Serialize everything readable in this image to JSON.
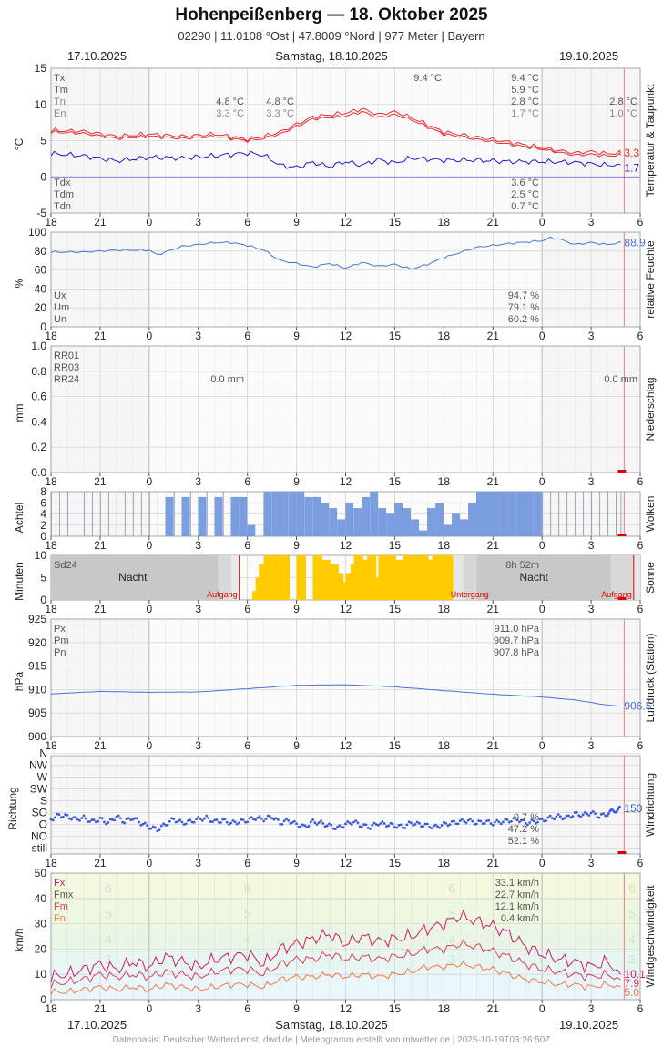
{
  "header": {
    "title": "Hohenpeißenberg  —  18. Oktober 2025",
    "subtitle": "02290  |  11.0108 °Ost  |  47.8009 °Nord  |  977 Meter  |  Bayern",
    "date_left": "17.10.2025",
    "date_center": "Samstag, 18.10.2025",
    "date_right": "19.10.2025"
  },
  "footer": "Datenbasis: Deutscher Wetterdienst, dwd.de | Meteogramm erstellt von mtwetter.de | 2025-10-19T03:26:50Z",
  "x_axis": {
    "tick_labels": [
      "18",
      "21",
      "0",
      "3",
      "6",
      "9",
      "12",
      "15",
      "18",
      "21",
      "0",
      "3",
      "6"
    ],
    "unit": "hours"
  },
  "colors": {
    "temperature": "#e8282b",
    "dewpoint": "#1a1acc",
    "humidity": "#4a72d8",
    "pressure": "#4a72d8",
    "clouds": "#7a9ee0",
    "sun": "#ffcc00",
    "gust": "#cc1a6a",
    "wind_max": "#d8405a",
    "wind_mean": "#f07a40",
    "night": "#c8c8c8"
  },
  "chart_data": [
    {
      "id": "temp",
      "type": "line",
      "ylabel": "°C",
      "side_label": "Temperatur & Taupunkt",
      "ylim": [
        -5,
        15
      ],
      "yticks": [
        "-5",
        "0",
        "5",
        "10",
        "15"
      ],
      "legend_top": [
        "Tx",
        "Tm",
        "Tn",
        "En"
      ],
      "legend_bottom": [
        "Tdx",
        "Tdm",
        "Tdn"
      ],
      "stats_day1": {
        "Tx": "9.4 °C",
        "Tm": "5.9 °C",
        "Tn": "2.8 °C",
        "En": "1.7 °C"
      },
      "stats_dew": {
        "Tdx": "3.6 °C",
        "Tdm": "2.5 °C",
        "Tdn": "0.7 °C"
      },
      "stats_prev_Tn": "4.8 °C",
      "stats_prev_En": "3.3 °C",
      "stats_prev2_Tn": "4.8 °C",
      "stats_prev2_En": "3.3 °C",
      "stats_tx_peak": "9.4 °C",
      "stats_next_Tn": "2.8 °C",
      "stats_next_En": "1.0 °C",
      "last_temp": "3.3",
      "last_dew": "1.7",
      "series": [
        {
          "name": "Tx",
          "x": [
            18,
            20,
            22,
            24,
            26,
            28,
            30,
            31,
            32,
            34,
            36,
            37,
            38,
            39,
            40,
            42,
            44,
            46,
            48,
            50,
            51,
            52,
            52.8
          ],
          "y": [
            6.4,
            6.3,
            5.6,
            5.9,
            5.6,
            5.9,
            5.2,
            5.6,
            6.2,
            8.3,
            8.8,
            9.4,
            8.6,
            9.0,
            8.2,
            6.2,
            5.5,
            4.8,
            4.0,
            3.3,
            3.5,
            3.2,
            3.3
          ]
        },
        {
          "name": "Tm",
          "x": [
            18,
            20,
            22,
            24,
            26,
            28,
            30,
            31,
            32,
            34,
            36,
            37,
            38,
            39,
            40,
            42,
            44,
            46,
            48,
            50,
            51,
            52,
            52.8
          ],
          "y": [
            6.2,
            6.0,
            5.3,
            5.6,
            5.3,
            5.6,
            5.0,
            5.3,
            5.9,
            8.0,
            8.4,
            9.0,
            8.2,
            8.6,
            7.9,
            5.9,
            5.2,
            4.5,
            3.8,
            3.0,
            3.1,
            2.9,
            3.0
          ]
        },
        {
          "name": "Td",
          "x": [
            18,
            20,
            22,
            24,
            26,
            28,
            30,
            31,
            32,
            33,
            34,
            35,
            36,
            37,
            38,
            39,
            40,
            42,
            44,
            46,
            48,
            50,
            52,
            52.8
          ],
          "y": [
            3.2,
            2.9,
            2.2,
            2.7,
            2.6,
            2.9,
            3.3,
            3.0,
            1.6,
            1.3,
            2.0,
            1.4,
            2.1,
            1.6,
            2.4,
            1.9,
            2.6,
            2.3,
            2.3,
            2.1,
            2.1,
            2.0,
            1.6,
            1.7
          ]
        }
      ]
    },
    {
      "id": "rh",
      "type": "line",
      "ylabel": "%",
      "side_label": "relative Feuchte",
      "ylim": [
        0,
        100
      ],
      "yticks": [
        "0",
        "20",
        "40",
        "60",
        "80",
        "100"
      ],
      "legend": [
        "Ux",
        "Um",
        "Un"
      ],
      "stats": {
        "Ux": "94.7 %",
        "Um": "79.1 %",
        "Un": "60.2 %"
      },
      "last": "88.9",
      "series": [
        {
          "name": "rh",
          "x": [
            18,
            20,
            22,
            24,
            24.5,
            26,
            28,
            29,
            30,
            31,
            32,
            33,
            34,
            35,
            36,
            37,
            38,
            39,
            40,
            41,
            42,
            44,
            46,
            48,
            48.5,
            49,
            50,
            51,
            52,
            52.8
          ],
          "y": [
            79,
            79,
            81,
            81,
            76,
            85,
            89,
            89,
            86,
            81,
            70,
            67,
            63,
            67,
            62,
            68,
            64,
            66,
            61,
            66,
            73,
            84,
            88,
            91,
            94,
            93,
            87,
            89,
            87,
            88.9
          ]
        }
      ]
    },
    {
      "id": "precip",
      "type": "bar",
      "ylabel": "mm",
      "side_label": "Niederschlag",
      "ylim": [
        0,
        1.0
      ],
      "yticks": [
        "0.0",
        "0.2",
        "0.4",
        "0.6",
        "0.8",
        "1.0"
      ],
      "legend": [
        "RR01",
        "RR03",
        "RR24"
      ],
      "total_day": "0.0 mm",
      "total_next": "0.0 mm",
      "values": []
    },
    {
      "id": "clouds",
      "type": "bar",
      "ylabel": "Achtel",
      "side_label": "Wolken",
      "ylim": [
        0,
        8
      ],
      "yticks": [
        "0",
        "2",
        "4",
        "6",
        "8"
      ],
      "x": [
        18,
        18.5,
        19,
        19.5,
        20,
        20.5,
        21,
        21.5,
        22,
        22.5,
        23,
        23.5,
        24,
        24.5,
        25,
        25.5,
        26,
        26.5,
        27,
        27.5,
        28,
        28.5,
        29,
        29.5,
        30,
        30.5,
        31,
        31.5,
        32,
        32.5,
        33,
        33.5,
        34,
        34.5,
        35,
        35.5,
        36,
        36.5,
        37,
        37.5,
        38,
        38.5,
        39,
        39.5,
        40,
        40.5,
        41,
        41.5,
        42,
        42.5,
        43,
        43.5,
        44,
        44.5,
        45,
        45.5,
        46,
        46.5,
        47,
        47.5,
        48,
        48.5,
        49,
        49.5,
        50,
        50.5,
        51,
        51.5,
        52,
        52.5,
        52.8
      ],
      "values": [
        8,
        8,
        8,
        8,
        8,
        8,
        8,
        8,
        8,
        8,
        8,
        8,
        8,
        8,
        7,
        8,
        7,
        8,
        7,
        8,
        7,
        8,
        7,
        7,
        2,
        0,
        8,
        8,
        8,
        8,
        8,
        7,
        7,
        6,
        5,
        3,
        6,
        5,
        7,
        8,
        5,
        4,
        6,
        5,
        3,
        1,
        5,
        6,
        2,
        4,
        3,
        6,
        8,
        8,
        8,
        8,
        8,
        8,
        8,
        8,
        8,
        8,
        8,
        8,
        8,
        8,
        8,
        8,
        8,
        8,
        8
      ],
      "observed": [
        false,
        false,
        false,
        false,
        false,
        false,
        false,
        false,
        false,
        false,
        false,
        false,
        false,
        false,
        true,
        false,
        true,
        false,
        true,
        false,
        true,
        false,
        true,
        true,
        true,
        true,
        true,
        true,
        true,
        true,
        true,
        true,
        true,
        true,
        true,
        true,
        true,
        true,
        true,
        true,
        true,
        true,
        true,
        true,
        true,
        true,
        true,
        true,
        true,
        true,
        true,
        true,
        true,
        true,
        true,
        true,
        true,
        true,
        true,
        true,
        false,
        false,
        false,
        false,
        false,
        false,
        false,
        false,
        false,
        false,
        false
      ]
    },
    {
      "id": "sun",
      "type": "bar",
      "ylabel": "Minuten",
      "side_label": "Sonne",
      "ylim": [
        0,
        10
      ],
      "yticks": [
        "0",
        "5",
        "10"
      ],
      "legend": [
        "Sd24"
      ],
      "total": "8h 52m",
      "night_label": "Nacht",
      "sunrise_label": "Aufgang",
      "sunset_label": "Untergang",
      "x": [
        30.3,
        30.5,
        30.7,
        31,
        31.3,
        31.5,
        32,
        33,
        34,
        34.5,
        35,
        35.3,
        35.5,
        36,
        36.3,
        36.5,
        37,
        37.3,
        37.5,
        38,
        38.3,
        38.5,
        39,
        39.5,
        40,
        40.3,
        40.5,
        41,
        41.3,
        41.5,
        42
      ],
      "values": [
        2,
        5,
        8,
        10,
        9,
        10,
        10,
        10,
        10,
        9,
        8,
        6,
        4,
        6,
        8,
        10,
        9,
        10,
        5,
        10,
        6,
        10,
        9,
        10,
        10,
        5,
        10,
        9,
        10,
        10,
        10
      ]
    },
    {
      "id": "pressure",
      "type": "line",
      "ylabel": "hPa",
      "side_label": "Luftdruck (Station)",
      "ylim": [
        900,
        925
      ],
      "yticks": [
        "900",
        "905",
        "910",
        "915",
        "920",
        "925"
      ],
      "legend": [
        "Px",
        "Pm",
        "Pn"
      ],
      "stats": {
        "Px": "911.0 hPa",
        "Pm": "909.7 hPa",
        "Pn": "907.8 hPa"
      },
      "last": "906.5",
      "series": [
        {
          "name": "p",
          "x": [
            18,
            21,
            24,
            27,
            30,
            33,
            36,
            39,
            42,
            45,
            48,
            50,
            52,
            52.8
          ],
          "y": [
            909.1,
            909.6,
            909.4,
            909.5,
            910.2,
            910.9,
            911.0,
            910.6,
            909.8,
            909.0,
            908.4,
            907.8,
            906.7,
            906.5
          ]
        }
      ]
    },
    {
      "id": "winddir",
      "type": "scatter",
      "ylabel": "Richtung",
      "side_label": "Windrichtung",
      "ycategories": [
        "still",
        "NO",
        "O",
        "SO",
        "S",
        "SW",
        "W",
        "NW",
        "N"
      ],
      "stats": {
        "a": "0.7 %",
        "b": "47.2 %",
        "c": "52.1 %"
      },
      "last": "150",
      "series": [
        {
          "name": "dir",
          "x": [
            18,
            18.5,
            19,
            19.5,
            20,
            20.5,
            21,
            21.5,
            22,
            22.5,
            23,
            23.5,
            24,
            24.5,
            25,
            25.5,
            26,
            26.5,
            27,
            27.5,
            28,
            28.5,
            29,
            29.5,
            30,
            30.5,
            31,
            31.5,
            32,
            32.5,
            33,
            33.5,
            34,
            34.5,
            35,
            35.5,
            36,
            36.5,
            37,
            37.5,
            38,
            38.5,
            39,
            39.5,
            40,
            40.5,
            41,
            41.5,
            42,
            42.5,
            43,
            43.5,
            44,
            44.5,
            45,
            45.5,
            46,
            46.5,
            47,
            47.5,
            48,
            48.5,
            49,
            49.5,
            50,
            50.5,
            51,
            51.5,
            52,
            52.3,
            52.6,
            52.8
          ],
          "y": [
            110,
            125,
            120,
            110,
            115,
            100,
            110,
            95,
            120,
            100,
            115,
            95,
            80,
            70,
            90,
            110,
            95,
            100,
            110,
            115,
            100,
            105,
            95,
            100,
            105,
            115,
            110,
            120,
            95,
            105,
            90,
            80,
            100,
            95,
            85,
            75,
            90,
            100,
            85,
            80,
            95,
            90,
            85,
            80,
            95,
            90,
            85,
            80,
            90,
            95,
            100,
            105,
            95,
            100,
            95,
            100,
            105,
            110,
            95,
            100,
            105,
            115,
            120,
            115,
            130,
            125,
            135,
            120,
            130,
            140,
            145,
            150
          ]
        }
      ]
    },
    {
      "id": "wind",
      "type": "line",
      "ylabel": "km/h",
      "side_label": "Windgeschwindigkeit",
      "ylim": [
        0,
        50
      ],
      "yticks": [
        "0",
        "10",
        "20",
        "30",
        "40",
        "50"
      ],
      "legend": [
        "Fx",
        "Fmx",
        "Fm",
        "Fn"
      ],
      "stats": {
        "Fx": "33.1 km/h",
        "Fmx": "22.7 km/h",
        "Fm": "12.1 km/h",
        "Fn": "0.4 km/h"
      },
      "beaufort": [
        "3",
        "4",
        "5",
        "6"
      ],
      "last_fx": "10.1",
      "last_fm": "7.9",
      "last_fn": "5.0",
      "series": [
        {
          "name": "Fx",
          "x": [
            18,
            19,
            20,
            21,
            22,
            23,
            24,
            25,
            26,
            27,
            28,
            29,
            30,
            31,
            32,
            33,
            34,
            35,
            36,
            37,
            38,
            39,
            40,
            41,
            42,
            43,
            44,
            45,
            46,
            47,
            48,
            49,
            50,
            51,
            52,
            52.8
          ],
          "y": [
            9,
            10,
            12,
            14,
            12,
            15,
            13,
            17,
            15,
            13,
            16,
            17,
            18,
            14,
            20,
            22,
            24,
            26,
            22,
            25,
            23,
            24,
            25,
            28,
            30,
            33,
            31,
            29,
            26,
            21,
            18,
            16,
            15,
            13,
            15,
            10.1
          ]
        },
        {
          "name": "Fmx",
          "x": [
            18,
            19,
            20,
            21,
            22,
            23,
            24,
            25,
            26,
            27,
            28,
            29,
            30,
            31,
            32,
            33,
            34,
            35,
            36,
            37,
            38,
            39,
            40,
            41,
            42,
            43,
            44,
            45,
            46,
            47,
            48,
            49,
            50,
            51,
            52,
            52.8
          ],
          "y": [
            6,
            7,
            8,
            10,
            9,
            10,
            9,
            11,
            10,
            9,
            11,
            12,
            12,
            10,
            14,
            16,
            16,
            18,
            16,
            17,
            16,
            17,
            18,
            20,
            20,
            22,
            21,
            19,
            17,
            14,
            12,
            11,
            10,
            9,
            10,
            7.9
          ]
        },
        {
          "name": "Fm",
          "x": [
            18,
            19,
            20,
            21,
            22,
            23,
            24,
            25,
            26,
            27,
            28,
            29,
            30,
            31,
            32,
            33,
            34,
            35,
            36,
            37,
            38,
            39,
            40,
            41,
            42,
            43,
            44,
            45,
            46,
            47,
            48,
            49,
            50,
            51,
            52,
            52.8
          ],
          "y": [
            3,
            3,
            4,
            5,
            4,
            5,
            4,
            6,
            5,
            4,
            5,
            6,
            6,
            5,
            8,
            9,
            9,
            10,
            9,
            10,
            9,
            10,
            11,
            13,
            13,
            14,
            13,
            12,
            10,
            8,
            7,
            6,
            6,
            5,
            6,
            5.0
          ]
        }
      ]
    }
  ]
}
